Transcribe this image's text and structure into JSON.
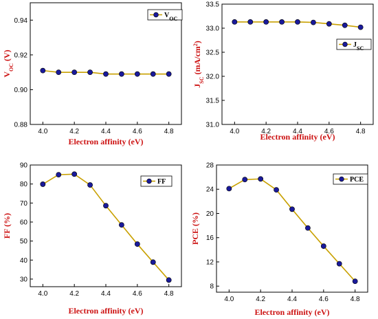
{
  "colors": {
    "line": "#c8a000",
    "marker": "#1a1a9a",
    "label": "#cc1111",
    "axis": "#000000"
  },
  "chart_data": [
    {
      "type": "line",
      "x": [
        4.0,
        4.1,
        4.2,
        4.3,
        4.4,
        4.5,
        4.6,
        4.7,
        4.8
      ],
      "series": [
        {
          "name": "V",
          "name_sub": "OC",
          "values": [
            0.911,
            0.91,
            0.91,
            0.91,
            0.909,
            0.909,
            0.909,
            0.909,
            0.909
          ]
        }
      ],
      "xlabel": "Electron affinity (eV)",
      "ylabel": "V",
      "ylabel_sub": "OC",
      "ylabel_rest": " (V)",
      "xlim": [
        3.92,
        4.88
      ],
      "ylim": [
        0.88,
        0.95
      ],
      "xticks": [
        "4.0",
        "4.2",
        "4.4",
        "4.6",
        "4.8"
      ],
      "yticks": [
        "0.88",
        "0.90",
        "0.92",
        "0.94"
      ],
      "legend": "top-right"
    },
    {
      "type": "line",
      "x": [
        4.0,
        4.1,
        4.2,
        4.3,
        4.4,
        4.5,
        4.6,
        4.7,
        4.8
      ],
      "series": [
        {
          "name": "J",
          "name_sub": "SC",
          "values": [
            33.13,
            33.13,
            33.13,
            33.13,
            33.13,
            33.12,
            33.09,
            33.06,
            33.02
          ]
        }
      ],
      "xlabel": "Electron affinity (eV)",
      "ylabel": "J",
      "ylabel_sub": "SC",
      "ylabel_rest": " (mA/cm",
      "ylabel_sup": "2",
      "ylabel_end": ")",
      "xlim": [
        3.92,
        4.88
      ],
      "ylim": [
        31.0,
        33.5
      ],
      "xticks": [
        "4.0",
        "4.2",
        "4.4",
        "4.6",
        "4.8"
      ],
      "yticks": [
        "31.0",
        "31.5",
        "32.0",
        "32.5",
        "33.0",
        "33.5"
      ],
      "legend": "top-right"
    },
    {
      "type": "line",
      "x": [
        4.0,
        4.1,
        4.2,
        4.3,
        4.4,
        4.5,
        4.6,
        4.7,
        4.8
      ],
      "series": [
        {
          "name": "FF",
          "values": [
            79.9,
            84.9,
            85.2,
            79.5,
            68.6,
            58.5,
            48.4,
            38.9,
            29.5
          ]
        }
      ],
      "xlabel": "Electron affinity (eV)",
      "ylabel": "FF (%)",
      "xlim": [
        3.92,
        4.88
      ],
      "ylim": [
        26,
        90
      ],
      "xticks": [
        "4.0",
        "4.2",
        "4.4",
        "4.6",
        "4.8"
      ],
      "yticks": [
        "30",
        "40",
        "50",
        "60",
        "70",
        "80",
        "90"
      ],
      "legend": "top-right"
    },
    {
      "type": "line",
      "x": [
        4.0,
        4.1,
        4.2,
        4.3,
        4.4,
        4.5,
        4.6,
        4.7,
        4.8
      ],
      "series": [
        {
          "name": "PCE",
          "values": [
            24.1,
            25.6,
            25.7,
            23.9,
            20.7,
            17.6,
            14.6,
            11.7,
            8.8
          ]
        }
      ],
      "xlabel": "Electron affinity (eV)",
      "ylabel": "PCE (%)",
      "xlim": [
        3.92,
        4.88
      ],
      "ylim": [
        7,
        28
      ],
      "xticks": [
        "4.0",
        "4.2",
        "4.4",
        "4.6",
        "4.8"
      ],
      "yticks": [
        "8",
        "12",
        "16",
        "20",
        "24",
        "28"
      ],
      "legend": "top-right"
    }
  ]
}
